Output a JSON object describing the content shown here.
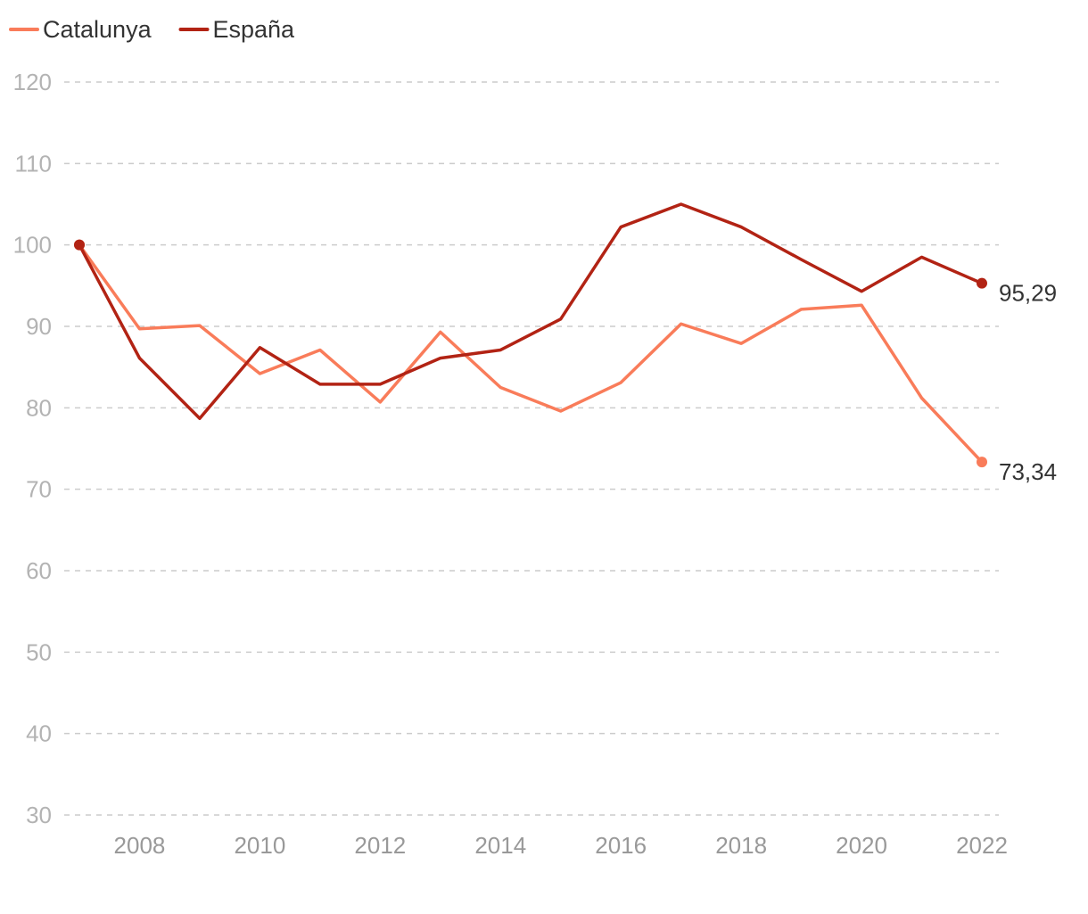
{
  "chart_data": {
    "type": "line",
    "title": "",
    "xlabel": "",
    "ylabel": "",
    "x": [
      2007,
      2008,
      2009,
      2010,
      2011,
      2012,
      2013,
      2014,
      2015,
      2016,
      2017,
      2018,
      2019,
      2020,
      2021,
      2022
    ],
    "xlim": [
      2007,
      2022
    ],
    "ylim": [
      30,
      120
    ],
    "y_ticks": [
      30,
      40,
      50,
      60,
      70,
      80,
      90,
      100,
      110,
      120
    ],
    "y_tick_labels": [
      "30",
      "40",
      "50",
      "60",
      "70",
      "80",
      "90",
      "100",
      "110",
      "120"
    ],
    "x_ticks": [
      2008,
      2010,
      2012,
      2014,
      2016,
      2018,
      2020,
      2022
    ],
    "x_tick_labels": [
      "2008",
      "2010",
      "2012",
      "2014",
      "2016",
      "2018",
      "2020",
      "2022"
    ],
    "grid": true,
    "legend_position": "top-left",
    "series": [
      {
        "name": "Catalunya",
        "color": "#f97c5a",
        "values": [
          100,
          89.7,
          90.1,
          84.2,
          87.1,
          80.7,
          89.3,
          82.5,
          79.6,
          83.1,
          90.3,
          87.9,
          92.1,
          92.6,
          81.2,
          73.34
        ],
        "end_label": "73,34"
      },
      {
        "name": "España",
        "color": "#b22314",
        "values": [
          100,
          86.1,
          78.7,
          87.4,
          82.9,
          82.9,
          86.1,
          87.1,
          90.9,
          102.2,
          105,
          102.2,
          98.2,
          94.3,
          98.5,
          95.29
        ],
        "end_label": "95,29"
      }
    ]
  }
}
